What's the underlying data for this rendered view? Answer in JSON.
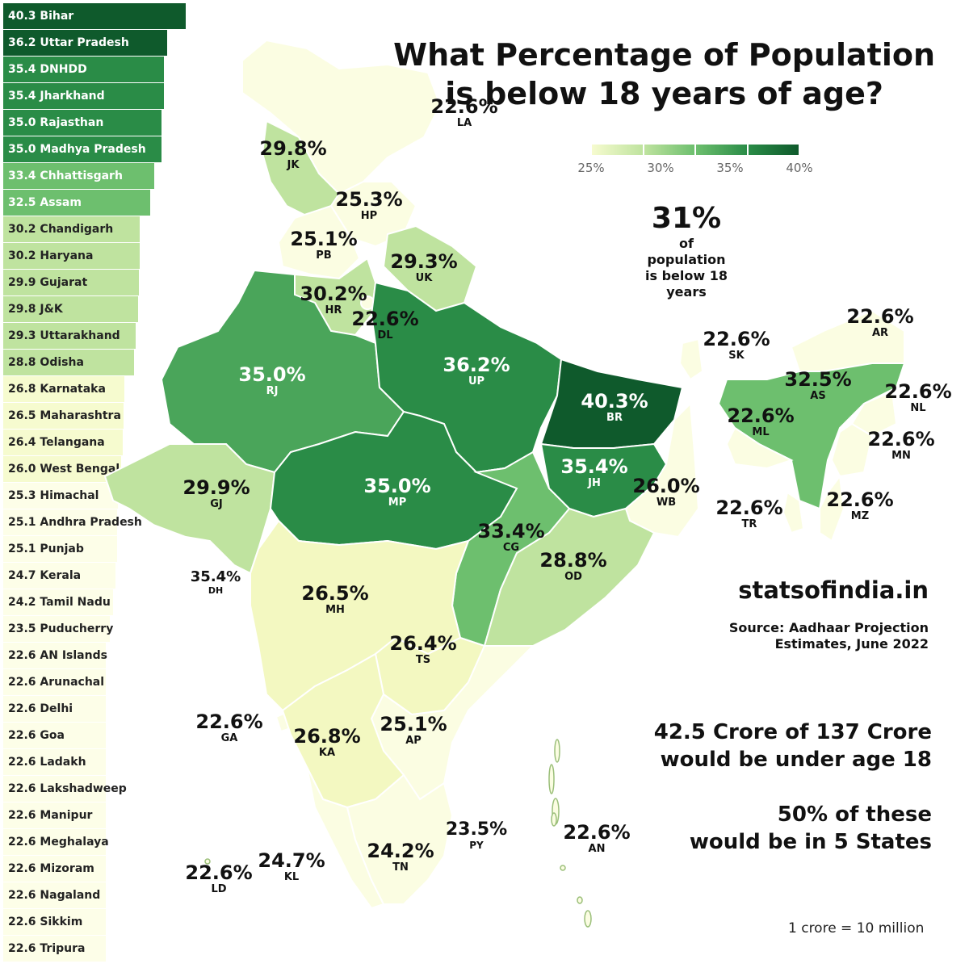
{
  "title": {
    "line1": "What Percentage of Population",
    "line2": "is below 18 years of age?"
  },
  "legend": {
    "ticks": [
      "25%",
      "30%",
      "35%",
      "40%"
    ],
    "colors": [
      "#f6fbcf",
      "#bfe39f",
      "#6dbf6e",
      "#2a8c47",
      "#0f5a2c"
    ]
  },
  "overall": {
    "value": "31%",
    "text1": "of population",
    "text2": "is below 18 years"
  },
  "site": "statsofindia.in",
  "source": {
    "line1": "Source: Aadhaar Projection",
    "line2": "Estimates, June 2022"
  },
  "note1": {
    "line1": "42.5 Crore of 137 Crore",
    "line2": "would be under age 18"
  },
  "note2": {
    "line1": "50% of these",
    "line2": "would be in 5 States"
  },
  "unit_note": "1 crore  = 10 million",
  "chart_data": {
    "type": "bar",
    "orientation": "horizontal",
    "unit": "% of population below 18",
    "categories": [
      "Bihar",
      "Uttar Pradesh",
      "DNHDD",
      "Jharkhand",
      "Rajasthan",
      "Madhya Pradesh",
      "Chhattisgarh",
      "Assam",
      "Chandigarh",
      "Haryana",
      "Gujarat",
      "J&K",
      "Uttarakhand",
      "Odisha",
      "Karnataka",
      "Maharashtra",
      "Telangana",
      "West Bengal",
      "Himachal",
      "Andhra Pradesh",
      "Punjab",
      "Kerala",
      "Tamil Nadu",
      "Puducherry",
      "AN Islands",
      "Arunachal",
      "Delhi",
      "Goa",
      "Ladakh",
      "Lakshadweep",
      "Manipur",
      "Meghalaya",
      "Mizoram",
      "Nagaland",
      "Sikkim",
      "Tripura"
    ],
    "values": [
      40.3,
      36.2,
      35.4,
      35.4,
      35.0,
      35.0,
      33.4,
      32.5,
      30.2,
      30.2,
      29.9,
      29.8,
      29.3,
      28.8,
      26.8,
      26.5,
      26.4,
      26.0,
      25.3,
      25.1,
      25.1,
      24.7,
      24.2,
      23.5,
      22.6,
      22.6,
      22.6,
      22.6,
      22.6,
      22.6,
      22.6,
      22.6,
      22.6,
      22.6,
      22.6,
      22.6
    ],
    "labels": [
      "40.3 Bihar",
      "36.2 Uttar Pradesh",
      "35.4 DNHDD",
      "35.4 Jharkhand",
      "35.0 Rajasthan",
      "35.0 Madhya Pradesh",
      "33.4 Chhattisgarh",
      "32.5 Assam",
      "30.2 Chandigarh",
      "30.2 Haryana",
      "29.9 Gujarat",
      "29.8 J&K",
      "29.3 Uttarakhand",
      "28.8 Odisha",
      "26.8 Karnataka",
      "26.5 Maharashtra",
      "26.4 Telangana",
      "26.0 West Bengal",
      "25.3 Himachal",
      "25.1 Andhra Pradesh",
      "25.1 Punjab",
      "24.7 Kerala",
      "24.2 Tamil Nadu",
      "23.5 Puducherry",
      "22.6 AN Islands",
      "22.6 Arunachal",
      "22.6 Delhi",
      "22.6 Goa",
      "22.6 Ladakh",
      "22.6 Lakshadweep",
      "22.6 Manipur",
      "22.6 Meghalaya",
      "22.6 Mizoram",
      "22.6 Nagaland",
      "22.6 Sikkim",
      "22.6 Tripura"
    ]
  },
  "map_labels": [
    {
      "v": "22.6%",
      "c": "LA"
    },
    {
      "v": "29.8%",
      "c": "JK"
    },
    {
      "v": "25.3%",
      "c": "HP"
    },
    {
      "v": "25.1%",
      "c": "PB"
    },
    {
      "v": "29.3%",
      "c": "UK"
    },
    {
      "v": "30.2%",
      "c": "HR"
    },
    {
      "v": "22.6%",
      "c": "DL"
    },
    {
      "v": "35.0%",
      "c": "RJ"
    },
    {
      "v": "36.2%",
      "c": "UP"
    },
    {
      "v": "40.3%",
      "c": "BR"
    },
    {
      "v": "29.9%",
      "c": "GJ"
    },
    {
      "v": "35.0%",
      "c": "MP"
    },
    {
      "v": "35.4%",
      "c": "JH"
    },
    {
      "v": "26.0%",
      "c": "WB"
    },
    {
      "v": "33.4%",
      "c": "CG"
    },
    {
      "v": "28.8%",
      "c": "OD"
    },
    {
      "v": "35.4%",
      "c": "DH"
    },
    {
      "v": "26.5%",
      "c": "MH"
    },
    {
      "v": "26.4%",
      "c": "TS"
    },
    {
      "v": "22.6%",
      "c": "GA"
    },
    {
      "v": "26.8%",
      "c": "KA"
    },
    {
      "v": "25.1%",
      "c": "AP"
    },
    {
      "v": "23.5%",
      "c": "PY"
    },
    {
      "v": "24.2%",
      "c": "TN"
    },
    {
      "v": "24.7%",
      "c": "KL"
    },
    {
      "v": "22.6%",
      "c": "LD"
    },
    {
      "v": "22.6%",
      "c": "AN"
    },
    {
      "v": "22.6%",
      "c": "SK"
    },
    {
      "v": "22.6%",
      "c": "AR"
    },
    {
      "v": "32.5%",
      "c": "AS"
    },
    {
      "v": "22.6%",
      "c": "NL"
    },
    {
      "v": "22.6%",
      "c": "ML"
    },
    {
      "v": "22.6%",
      "c": "MN"
    },
    {
      "v": "22.6%",
      "c": "TR"
    },
    {
      "v": "22.6%",
      "c": "MZ"
    }
  ]
}
